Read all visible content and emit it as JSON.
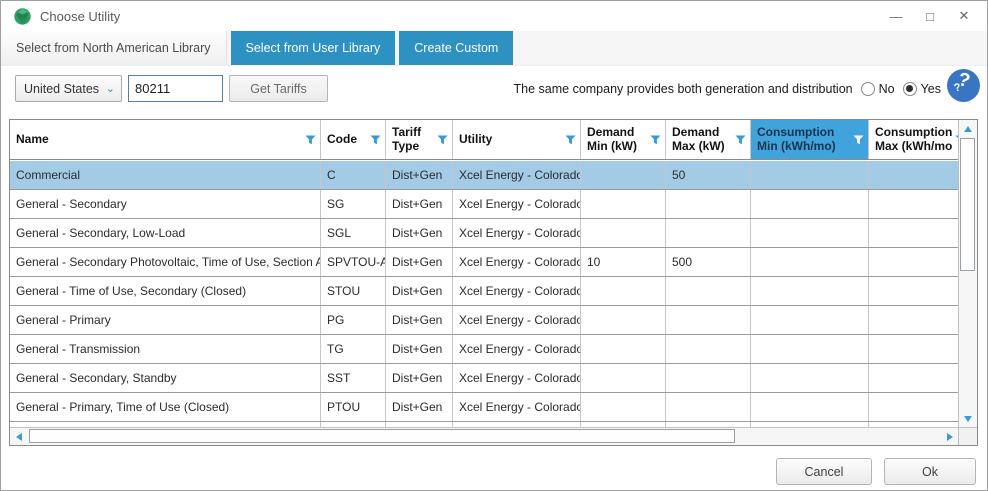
{
  "window": {
    "title": "Choose Utility"
  },
  "icons": {
    "minimize": "—",
    "maximize": "□",
    "close": "✕",
    "chevron_down": "⌄",
    "help": "?"
  },
  "tabs": [
    {
      "label": "Select from North American Library",
      "active": true
    },
    {
      "label": "Select from User Library",
      "active": false
    },
    {
      "label": "Create Custom",
      "active": false
    }
  ],
  "controls": {
    "country_value": "United States",
    "zip_value": "80211",
    "get_tariffs_label": "Get Tariffs",
    "question_text": "The same company provides both generation and distribution",
    "options": [
      {
        "label": "No",
        "selected": false
      },
      {
        "label": "Yes",
        "selected": true
      }
    ]
  },
  "grid": {
    "columns": [
      {
        "label": "Name",
        "highlight": false
      },
      {
        "label": "Code",
        "highlight": false
      },
      {
        "label": "Tariff Type",
        "highlight": false
      },
      {
        "label": "Utility",
        "highlight": false
      },
      {
        "label": "Demand Min (kW)",
        "highlight": false
      },
      {
        "label": "Demand Max (kW)",
        "highlight": false
      },
      {
        "label": "Consumption Min (kWh/mo)",
        "highlight": true
      },
      {
        "label": "Consumption Max (kWh/mo",
        "highlight": false
      }
    ],
    "rows": [
      {
        "selected": true,
        "cells": [
          "Commercial",
          "C",
          "Dist+Gen",
          "Xcel Energy - Colorado",
          "",
          "50",
          "",
          ""
        ]
      },
      {
        "selected": false,
        "cells": [
          "General - Secondary",
          "SG",
          "Dist+Gen",
          "Xcel Energy - Colorado",
          "",
          "",
          "",
          ""
        ]
      },
      {
        "selected": false,
        "cells": [
          "General - Secondary, Low-Load",
          "SGL",
          "Dist+Gen",
          "Xcel Energy - Colorado",
          "",
          "",
          "",
          ""
        ]
      },
      {
        "selected": false,
        "cells": [
          "General - Secondary Photovoltaic, Time of Use, Section A",
          "SPVTOU-A",
          "Dist+Gen",
          "Xcel Energy - Colorado",
          "10",
          "500",
          "",
          ""
        ]
      },
      {
        "selected": false,
        "cells": [
          "General - Time of Use, Secondary (Closed)",
          "STOU",
          "Dist+Gen",
          "Xcel Energy - Colorado",
          "",
          "",
          "",
          ""
        ]
      },
      {
        "selected": false,
        "cells": [
          "General - Primary",
          "PG",
          "Dist+Gen",
          "Xcel Energy - Colorado",
          "",
          "",
          "",
          ""
        ]
      },
      {
        "selected": false,
        "cells": [
          "General - Transmission",
          "TG",
          "Dist+Gen",
          "Xcel Energy - Colorado",
          "",
          "",
          "",
          ""
        ]
      },
      {
        "selected": false,
        "cells": [
          "General - Secondary, Standby",
          "SST",
          "Dist+Gen",
          "Xcel Energy - Colorado",
          "",
          "",
          "",
          ""
        ]
      },
      {
        "selected": false,
        "cells": [
          "General - Primary, Time of Use (Closed)",
          "PTOU",
          "Dist+Gen",
          "Xcel Energy - Colorado",
          "",
          "",
          "",
          ""
        ]
      }
    ]
  },
  "footer": {
    "cancel_label": "Cancel",
    "ok_label": "Ok"
  },
  "colors": {
    "tab_blue": "#2d91c1",
    "header_highlight": "#41a3dc",
    "row_selected": "#a3cbe5",
    "filter_icon_blue": "#2f9bd8",
    "help_icon_blue": "#3a75c4"
  }
}
